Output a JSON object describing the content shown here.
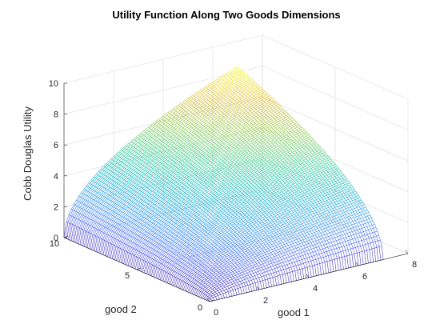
{
  "chart_data": {
    "type": "surface",
    "title": "Utility Function Along Two Goods Dimensions",
    "xlabel": "good 1",
    "ylabel": "good 2",
    "zlabel": "Cobb Douglas Utility",
    "function": "U = x^0.5 * y^0.5",
    "x_range": [
      0,
      7
    ],
    "y_range": [
      0,
      10
    ],
    "xlim": [
      0,
      8
    ],
    "ylim": [
      0,
      10
    ],
    "zlim": [
      0,
      10
    ],
    "x_ticks": [
      0,
      2,
      4,
      6,
      8
    ],
    "y_ticks": [
      0,
      5,
      10
    ],
    "z_ticks": [
      0,
      2,
      4,
      6,
      8,
      10
    ],
    "x_tick_labels": [
      "0",
      "2",
      "4",
      "6",
      "8"
    ],
    "y_tick_labels": [
      "0",
      "5",
      "10"
    ],
    "z_tick_labels": [
      "0",
      "2",
      "4",
      "6",
      "8",
      "10"
    ],
    "colormap": "parula",
    "grid": true,
    "view": "3d-default"
  }
}
